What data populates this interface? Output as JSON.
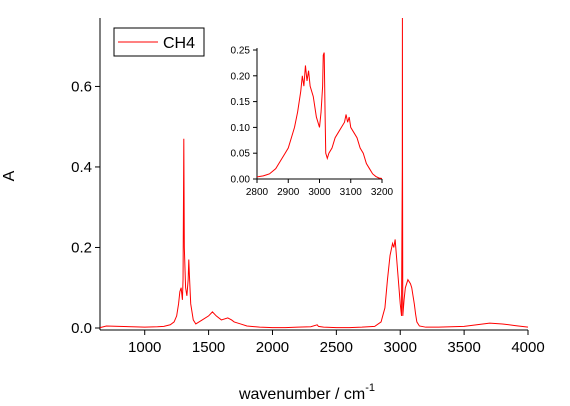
{
  "chart_data": [
    {
      "type": "line",
      "title": "",
      "xlabel": "wavenumber / cm",
      "xlabel_superscript": "-1",
      "ylabel": "A",
      "xlim": [
        650,
        4000
      ],
      "ylim": [
        -0.005,
        0.77
      ],
      "xticks": [
        1000,
        1500,
        2000,
        2500,
        3000,
        3500,
        4000
      ],
      "xtick_labels": [
        "1000",
        "1500",
        "2000",
        "2500",
        "3000",
        "3500",
        "4000"
      ],
      "yticks": [
        0.0,
        0.2,
        0.4,
        0.6
      ],
      "ytick_labels": [
        "0.0",
        "0.2",
        "0.4",
        "0.6"
      ],
      "grid": false,
      "legend": {
        "position": "top-left",
        "entries": [
          "CH4"
        ]
      },
      "series": [
        {
          "name": "CH4",
          "color": "#ff0000",
          "x": [
            650,
            700,
            800,
            900,
            1000,
            1100,
            1150,
            1200,
            1230,
            1250,
            1265,
            1275,
            1285,
            1295,
            1300,
            1304,
            1306,
            1310,
            1320,
            1330,
            1340,
            1345,
            1350,
            1360,
            1380,
            1400,
            1450,
            1500,
            1530,
            1560,
            1600,
            1650,
            1680,
            1700,
            1750,
            1800,
            1900,
            2000,
            2100,
            2200,
            2300,
            2350,
            2360,
            2400,
            2500,
            2600,
            2700,
            2800,
            2850,
            2880,
            2900,
            2920,
            2940,
            2950,
            2960,
            2970,
            2980,
            2990,
            3000,
            3010,
            3016,
            3017,
            3018,
            3020,
            3030,
            3040,
            3050,
            3060,
            3070,
            3080,
            3090,
            3100,
            3110,
            3120,
            3130,
            3150,
            3200,
            3300,
            3500,
            3600,
            3700,
            3800,
            3900,
            4000
          ],
          "y": [
            0.001,
            0.005,
            0.004,
            0.003,
            0.002,
            0.003,
            0.004,
            0.008,
            0.015,
            0.03,
            0.06,
            0.09,
            0.1,
            0.07,
            0.12,
            0.35,
            0.47,
            0.2,
            0.1,
            0.08,
            0.12,
            0.17,
            0.13,
            0.06,
            0.02,
            0.01,
            0.02,
            0.03,
            0.04,
            0.03,
            0.02,
            0.025,
            0.02,
            0.015,
            0.01,
            0.005,
            0.002,
            0.001,
            0.001,
            0.002,
            0.003,
            0.008,
            0.004,
            0.002,
            0.001,
            0.001,
            0.002,
            0.004,
            0.015,
            0.05,
            0.12,
            0.18,
            0.21,
            0.2,
            0.22,
            0.18,
            0.14,
            0.1,
            0.06,
            0.03,
            0.4,
            0.77,
            0.4,
            0.03,
            0.07,
            0.1,
            0.11,
            0.12,
            0.115,
            0.11,
            0.1,
            0.08,
            0.06,
            0.035,
            0.015,
            0.005,
            0.002,
            0.002,
            0.004,
            0.008,
            0.012,
            0.01,
            0.006,
            0.002
          ]
        }
      ]
    },
    {
      "type": "line",
      "title": "",
      "xlabel": "",
      "ylabel": "",
      "xlim": [
        2800,
        3200
      ],
      "ylim": [
        0,
        0.25
      ],
      "xticks": [
        2800,
        2900,
        3000,
        3100,
        3200
      ],
      "xtick_labels": [
        "2800",
        "2900",
        "3000",
        "3100",
        "3200"
      ],
      "yticks": [
        0.0,
        0.05,
        0.1,
        0.15,
        0.2,
        0.25
      ],
      "ytick_labels": [
        "0.00",
        "0.05",
        "0.10",
        "0.15",
        "0.20",
        "0.25"
      ],
      "grid": false,
      "series": [
        {
          "color": "#ff0000",
          "x": [
            2800,
            2810,
            2820,
            2830,
            2840,
            2850,
            2860,
            2870,
            2880,
            2890,
            2900,
            2910,
            2920,
            2930,
            2940,
            2945,
            2950,
            2955,
            2960,
            2965,
            2970,
            2980,
            2990,
            3000,
            3005,
            3010,
            3012,
            3015,
            3018,
            3020,
            3025,
            3030,
            3040,
            3050,
            3060,
            3070,
            3080,
            3085,
            3090,
            3095,
            3100,
            3110,
            3120,
            3130,
            3140,
            3150,
            3160,
            3170,
            3180,
            3190,
            3200
          ],
          "y": [
            0.004,
            0.005,
            0.006,
            0.008,
            0.01,
            0.015,
            0.02,
            0.03,
            0.04,
            0.05,
            0.06,
            0.08,
            0.1,
            0.13,
            0.17,
            0.2,
            0.18,
            0.22,
            0.19,
            0.21,
            0.18,
            0.16,
            0.12,
            0.1,
            0.13,
            0.18,
            0.24,
            0.245,
            0.12,
            0.05,
            0.04,
            0.05,
            0.06,
            0.08,
            0.09,
            0.1,
            0.11,
            0.125,
            0.11,
            0.12,
            0.1,
            0.09,
            0.08,
            0.06,
            0.05,
            0.03,
            0.02,
            0.01,
            0.005,
            0.002,
            0.001
          ]
        }
      ]
    }
  ]
}
